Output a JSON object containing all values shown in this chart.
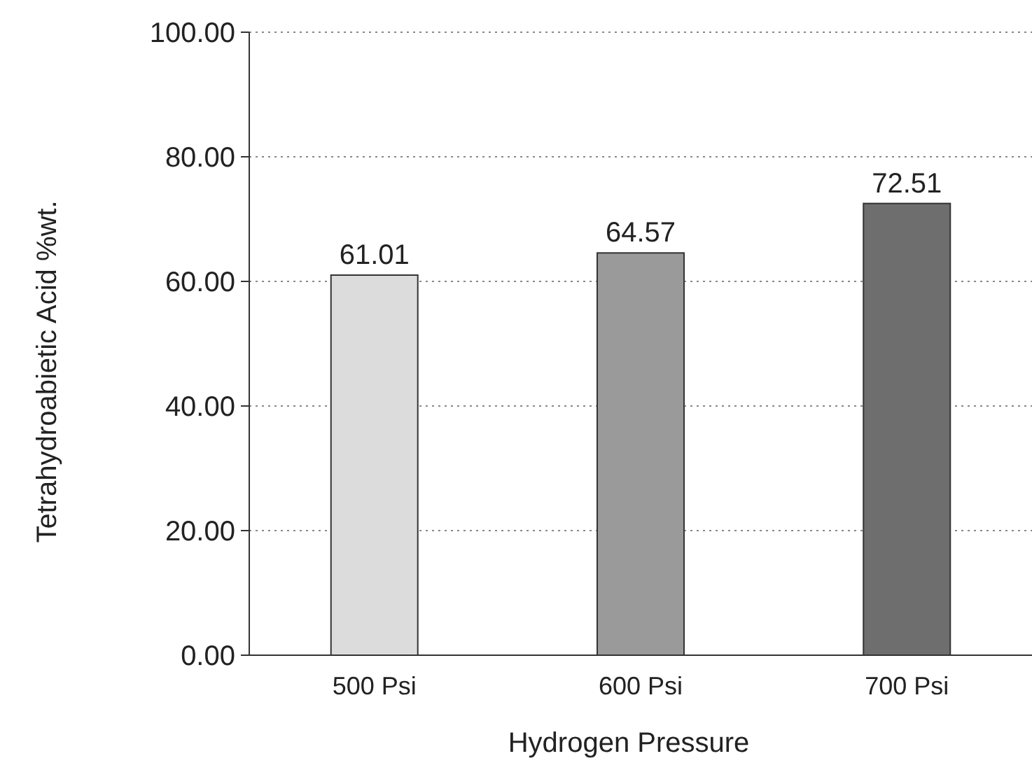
{
  "chart_data": {
    "type": "bar",
    "xlabel": "Hydrogen Pressure",
    "ylabel": "Tetrahydroabietic Acid %wt.",
    "categories": [
      "500 Psi",
      "600 Psi",
      "700 Psi"
    ],
    "values": [
      61.01,
      64.57,
      72.51
    ],
    "colors": [
      "#dcdcdc",
      "#9a9a9a",
      "#6e6e6e"
    ],
    "data_labels": true,
    "ylim": [
      0,
      100
    ],
    "yticks": [
      {
        "value": 0,
        "label": "0.00"
      },
      {
        "value": 20,
        "label": "20.00"
      },
      {
        "value": 40,
        "label": "40.00"
      },
      {
        "value": 60,
        "label": "60.00"
      },
      {
        "value": 80,
        "label": "80.00"
      },
      {
        "value": 100,
        "label": "100.00"
      }
    ],
    "grid": "y"
  }
}
